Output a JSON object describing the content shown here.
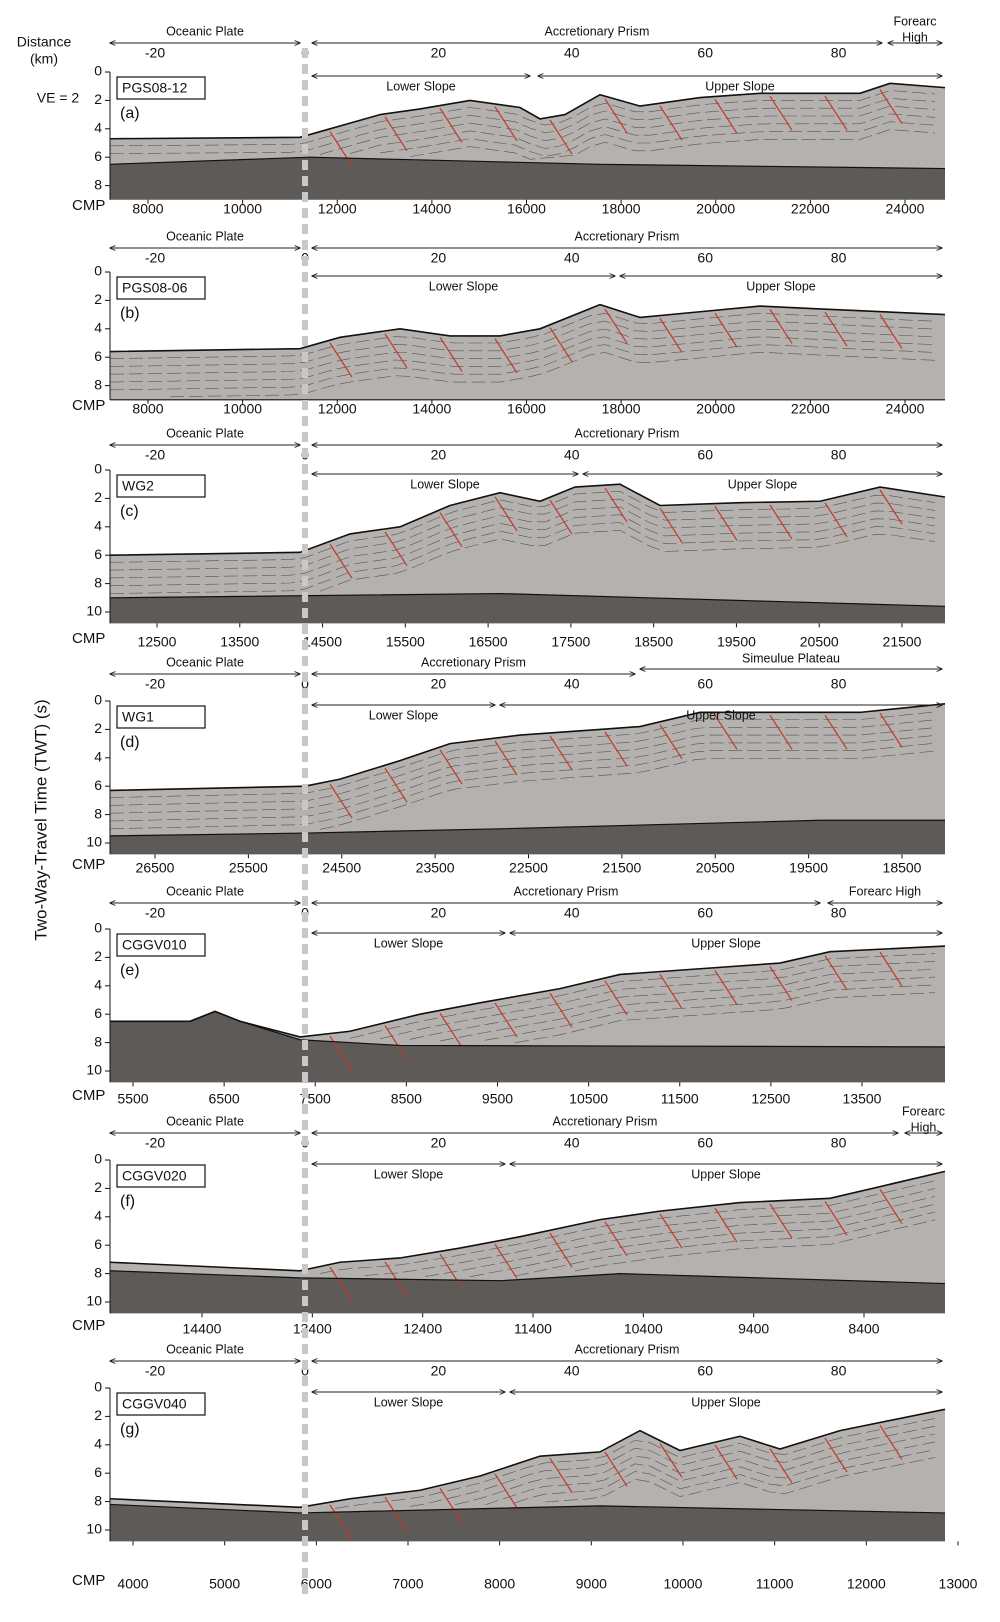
{
  "labels": {
    "distance": [
      "Distance",
      "(km)"
    ],
    "ve": "VE = 2",
    "twt": "Two-Way-Travel Time (TWT) (s)"
  },
  "panels": [
    {
      "name": "PGS08-12",
      "letter": "(a)",
      "regions": [
        [
          "Oceanic Plate"
        ],
        [
          "Accretionary Prism"
        ],
        [
          "Forearc",
          "High"
        ]
      ],
      "slopes": [
        "Lower Slope",
        "Upper Slope"
      ],
      "distance_ticks": [
        -20,
        0,
        20,
        40,
        60,
        80
      ],
      "twt_ticks": [
        0,
        2,
        4,
        6,
        8
      ],
      "cmp_label": "CMP",
      "cmp_ticks": [
        8000,
        10000,
        12000,
        14000,
        16000,
        18000,
        20000,
        22000,
        24000
      ]
    },
    {
      "name": "PGS08-06",
      "letter": "(b)",
      "regions": [
        [
          "Oceanic Plate"
        ],
        [
          "Accretionary Prism"
        ]
      ],
      "slopes": [
        "Lower Slope",
        "Upper Slope"
      ],
      "distance_ticks": [
        -20,
        0,
        20,
        40,
        60,
        80
      ],
      "twt_ticks": [
        0,
        2,
        4,
        6,
        8
      ],
      "cmp_label": "CMP",
      "cmp_ticks": [
        8000,
        10000,
        12000,
        14000,
        16000,
        18000,
        20000,
        22000,
        24000
      ]
    },
    {
      "name": "WG2",
      "letter": "(c)",
      "regions": [
        [
          "Oceanic Plate"
        ],
        [
          "Accretionary Prism"
        ]
      ],
      "slopes": [
        "Lower Slope",
        "Upper Slope"
      ],
      "distance_ticks": [
        -20,
        0,
        20,
        40,
        60,
        80
      ],
      "twt_ticks": [
        0,
        2,
        4,
        6,
        8,
        10
      ],
      "cmp_label": "CMP",
      "cmp_ticks": [
        12500,
        13500,
        14500,
        15500,
        16500,
        17500,
        18500,
        19500,
        20500,
        21500
      ]
    },
    {
      "name": "WG1",
      "letter": "(d)",
      "regions": [
        [
          "Oceanic Plate"
        ],
        [
          "Accretionary Prism"
        ],
        [
          "Simeulue Plateau"
        ]
      ],
      "slopes": [
        "Lower Slope",
        "Upper Slope"
      ],
      "distance_ticks": [
        -20,
        0,
        20,
        40,
        60,
        80
      ],
      "twt_ticks": [
        0,
        2,
        4,
        6,
        8,
        10
      ],
      "cmp_label": "CMP",
      "cmp_ticks": [
        26500,
        25500,
        24500,
        23500,
        22500,
        21500,
        20500,
        19500,
        18500
      ]
    },
    {
      "name": "CGGV010",
      "letter": "(e)",
      "regions": [
        [
          "Oceanic Plate"
        ],
        [
          "Accretionary Prism"
        ],
        [
          "Forearc High"
        ]
      ],
      "slopes": [
        "Lower Slope",
        "Upper Slope"
      ],
      "distance_ticks": [
        -20,
        0,
        20,
        40,
        60,
        80
      ],
      "twt_ticks": [
        0,
        2,
        4,
        6,
        8,
        10
      ],
      "cmp_label": "CMP",
      "cmp_ticks": [
        5500,
        6500,
        7500,
        8500,
        9500,
        10500,
        11500,
        12500,
        13500
      ]
    },
    {
      "name": "CGGV020",
      "letter": "(f)",
      "regions": [
        [
          "Oceanic Plate"
        ],
        [
          "Accretionary Prism"
        ],
        [
          "Forearc",
          "High"
        ]
      ],
      "slopes": [
        "Lower Slope",
        "Upper Slope"
      ],
      "distance_ticks": [
        -20,
        0,
        20,
        40,
        60,
        80
      ],
      "twt_ticks": [
        0,
        2,
        4,
        6,
        8,
        10
      ],
      "cmp_label": "CMP",
      "cmp_ticks": [
        14400,
        13400,
        12400,
        11400,
        10400,
        9400,
        8400
      ]
    },
    {
      "name": "CGGV040",
      "letter": "(g)",
      "regions": [
        [
          "Oceanic Plate"
        ],
        [
          "Accretionary Prism"
        ]
      ],
      "slopes": [
        "Lower Slope",
        "Upper Slope"
      ],
      "distance_ticks": [
        -20,
        0,
        20,
        40,
        60,
        80
      ],
      "twt_ticks": [
        0,
        2,
        4,
        6,
        8,
        10
      ],
      "cmp_label": "CMP",
      "cmp_ticks": [
        4000,
        5000,
        6000,
        7000,
        8000,
        9000,
        10000,
        11000,
        12000,
        13000
      ]
    }
  ]
}
